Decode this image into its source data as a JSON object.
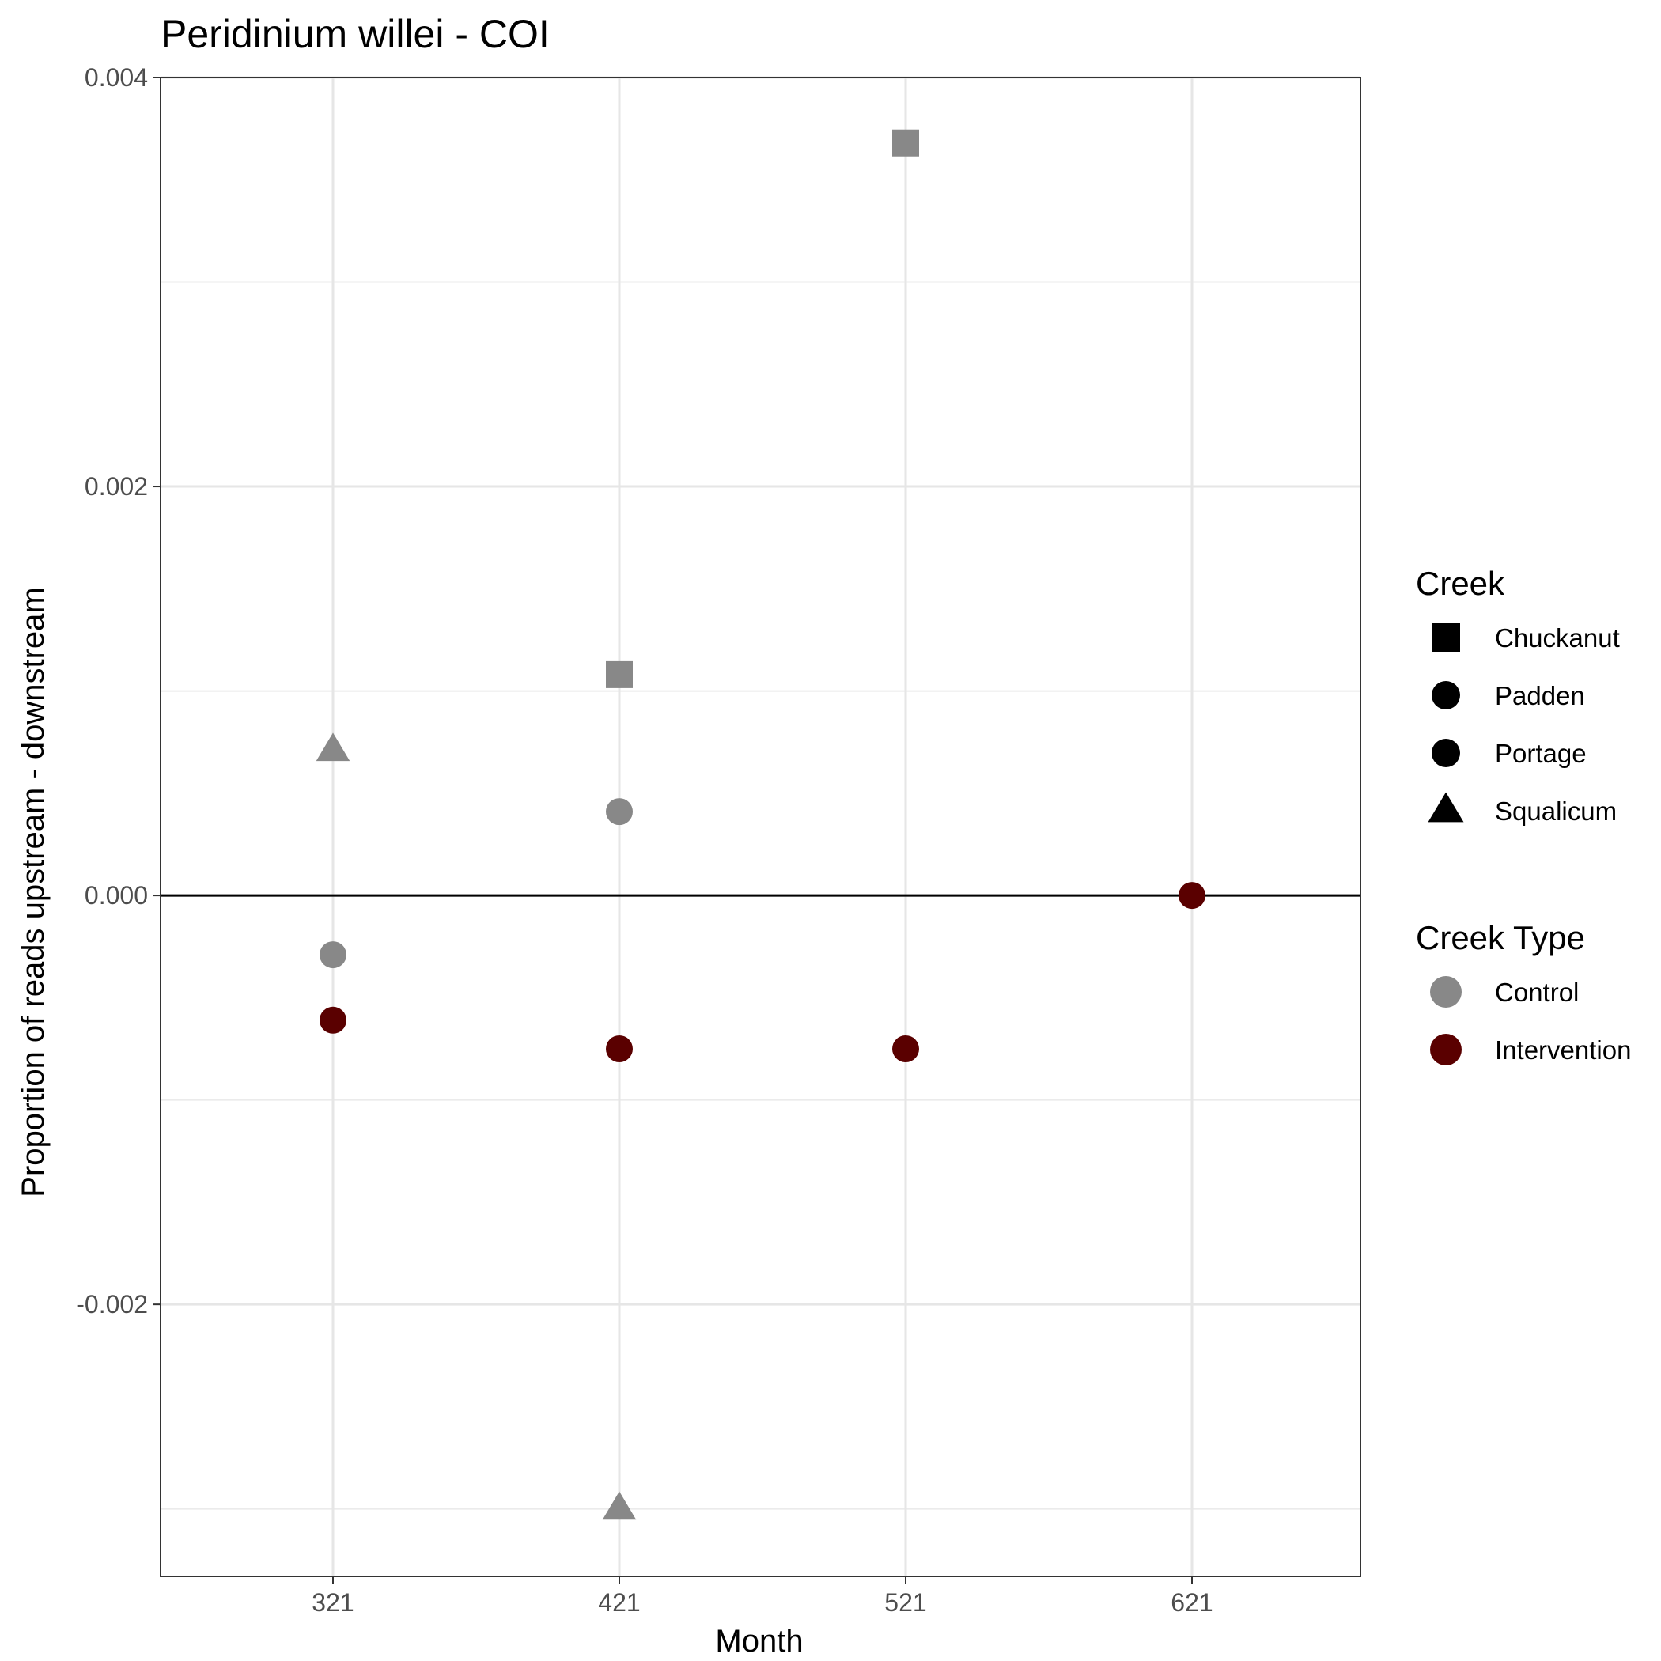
{
  "chart_data": {
    "type": "scatter",
    "title": "Peridinium willei - COI",
    "xlabel": "Month",
    "ylabel": "Proportion of reads upstream - downstream",
    "x_categories": [
      "321",
      "421",
      "521",
      "621"
    ],
    "ylim": [
      -0.00333,
      0.004
    ],
    "y_ticks": [
      -0.002,
      0.0,
      0.002,
      0.004
    ],
    "y_tick_labels": [
      "-0.002",
      "0.000",
      "0.002",
      "0.004"
    ],
    "grid": true,
    "reference_line_y": 0,
    "colors": {
      "Control": "#888888",
      "Intervention": "#5a0000"
    },
    "shapes": {
      "Chuckanut": "square",
      "Padden": "circle",
      "Portage": "circle",
      "Squalicum": "triangle"
    },
    "points": [
      {
        "x": "321",
        "y": 0.00071,
        "creek": "Squalicum",
        "type": "Control"
      },
      {
        "x": "321",
        "y": -0.00029,
        "creek": "Padden",
        "type": "Control"
      },
      {
        "x": "321",
        "y": -0.00061,
        "creek": "Portage",
        "type": "Intervention"
      },
      {
        "x": "421",
        "y": 0.00108,
        "creek": "Chuckanut",
        "type": "Control"
      },
      {
        "x": "421",
        "y": 0.00041,
        "creek": "Padden",
        "type": "Control"
      },
      {
        "x": "421",
        "y": -0.00075,
        "creek": "Portage",
        "type": "Intervention"
      },
      {
        "x": "421",
        "y": -0.003,
        "creek": "Squalicum",
        "type": "Control"
      },
      {
        "x": "521",
        "y": 0.00368,
        "creek": "Chuckanut",
        "type": "Control"
      },
      {
        "x": "521",
        "y": -0.00075,
        "creek": "Portage",
        "type": "Intervention"
      },
      {
        "x": "621",
        "y": 0.0,
        "creek": "Portage",
        "type": "Intervention"
      }
    ],
    "legends": [
      {
        "title": "Creek",
        "entries": [
          {
            "label": "Chuckanut",
            "shape": "square"
          },
          {
            "label": "Padden",
            "shape": "circle"
          },
          {
            "label": "Portage",
            "shape": "circle"
          },
          {
            "label": "Squalicum",
            "shape": "triangle"
          }
        ]
      },
      {
        "title": "Creek Type",
        "entries": [
          {
            "label": "Control",
            "color": "#888888"
          },
          {
            "label": "Intervention",
            "color": "#5a0000"
          }
        ]
      }
    ],
    "legend_position": "right"
  }
}
